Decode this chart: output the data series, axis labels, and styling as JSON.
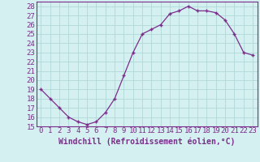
{
  "x": [
    0,
    1,
    2,
    3,
    4,
    5,
    6,
    7,
    8,
    9,
    10,
    11,
    12,
    13,
    14,
    15,
    16,
    17,
    18,
    19,
    20,
    21,
    22,
    23
  ],
  "y": [
    19,
    18,
    17,
    16,
    15.5,
    15.2,
    15.5,
    16.5,
    18,
    20.5,
    23,
    25,
    25.5,
    26,
    27.2,
    27.5,
    28,
    27.5,
    27.5,
    27.3,
    26.5,
    25,
    23,
    22.7
  ],
  "line_color": "#7b2d8b",
  "marker": "+",
  "bg_color": "#d5f0f0",
  "grid_color": "#b0d8d8",
  "xlabel": "Windchill (Refroidissement éolien,°C)",
  "xlim": [
    -0.5,
    23.5
  ],
  "ylim": [
    15,
    28.5
  ],
  "yticks": [
    15,
    16,
    17,
    18,
    19,
    20,
    21,
    22,
    23,
    24,
    25,
    26,
    27,
    28
  ],
  "xticks": [
    0,
    1,
    2,
    3,
    4,
    5,
    6,
    7,
    8,
    9,
    10,
    11,
    12,
    13,
    14,
    15,
    16,
    17,
    18,
    19,
    20,
    21,
    22,
    23
  ],
  "axis_color": "#7b2d8b",
  "tick_color": "#7b2d8b",
  "tick_fontsize": 6.5,
  "xlabel_fontsize": 7
}
